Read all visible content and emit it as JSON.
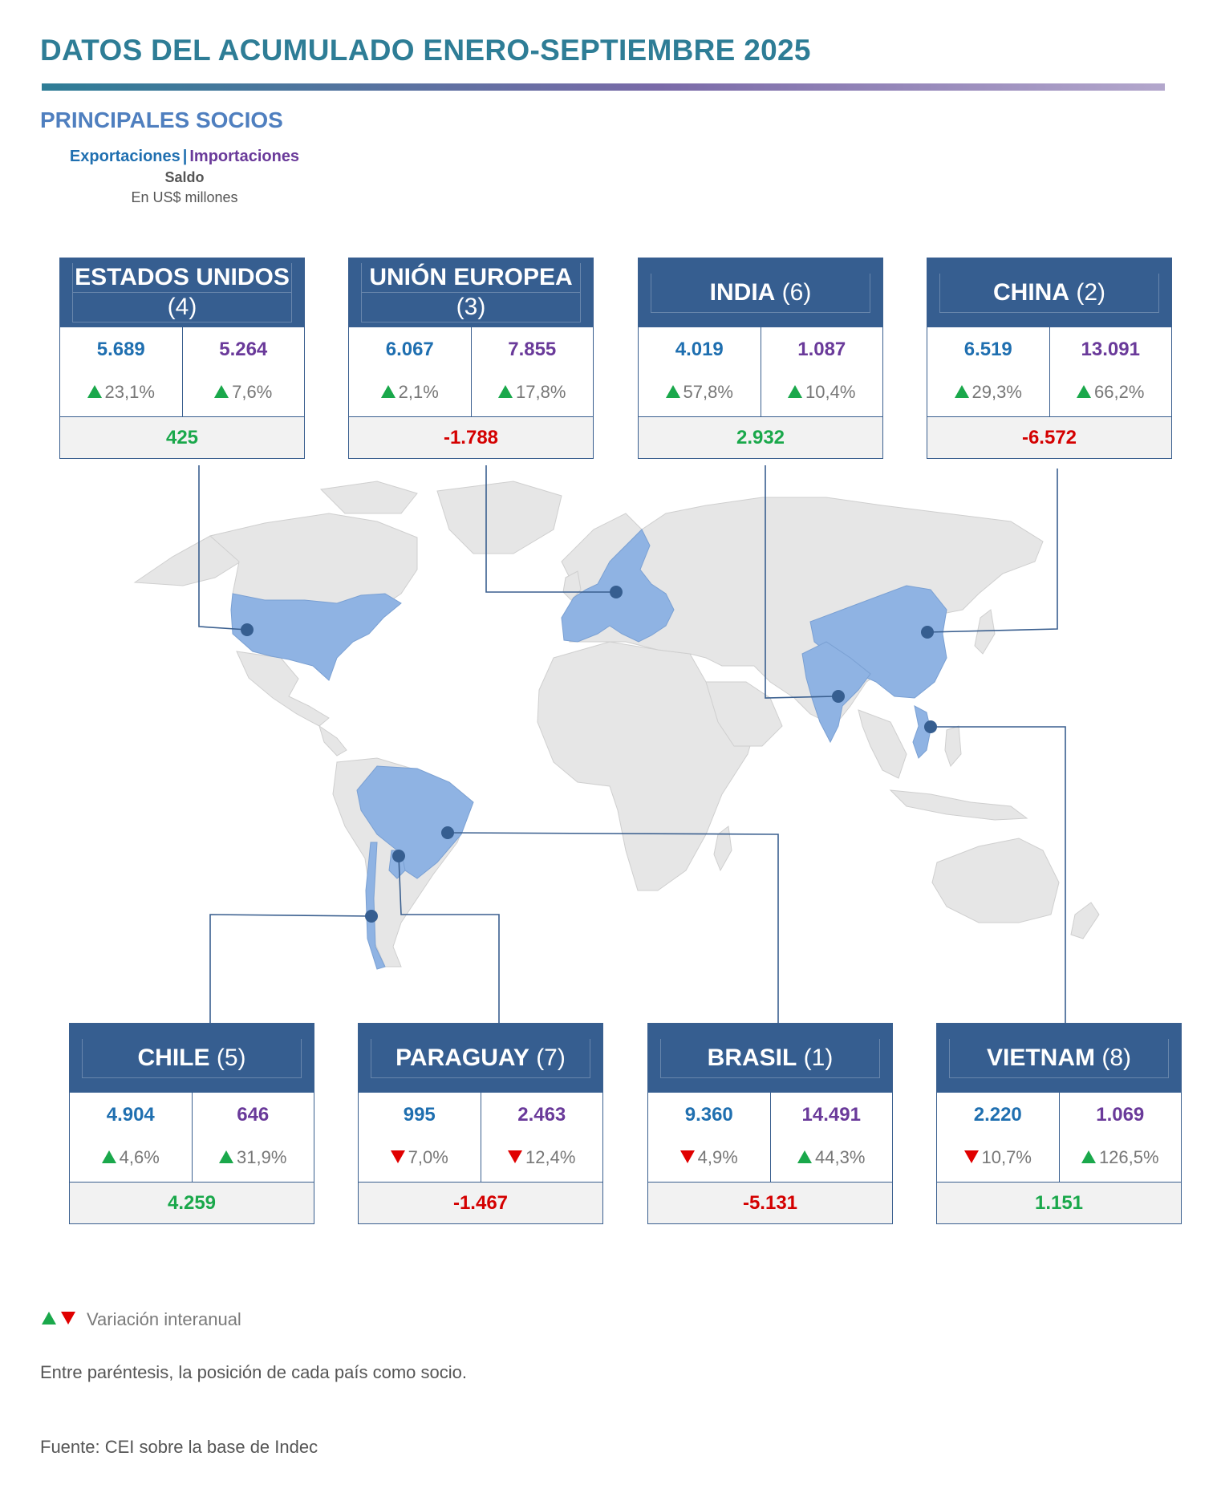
{
  "header": {
    "title": "DATOS DEL ACUMULADO ENERO-SEPTIEMBRE 2025",
    "subtitle": "PRINCIPALES SOCIOS",
    "legend_exports": "Exportaciones",
    "legend_separator": "|",
    "legend_imports": "Importaciones",
    "legend_balance": "Saldo",
    "legend_units": "En US$ millones"
  },
  "colors": {
    "header_bg": "#365e90",
    "exports": "#1f6fb0",
    "imports": "#6a3a9a",
    "positive": "#1aa84b",
    "negative": "#d40000",
    "partner_fill": "#8fb3e3",
    "land_fill": "#e6e6e6"
  },
  "partners": [
    {
      "name": "ESTADOS UNIDOS",
      "rank": "(4)",
      "exports": "5.689",
      "exports_var": "23,1%",
      "exports_dir": "up",
      "imports": "5.264",
      "imports_var": "7,6%",
      "imports_dir": "up",
      "balance": "425",
      "balance_sign": "pos"
    },
    {
      "name": "UNIÓN EUROPEA",
      "rank": "(3)",
      "exports": "6.067",
      "exports_var": "2,1%",
      "exports_dir": "up",
      "imports": "7.855",
      "imports_var": "17,8%",
      "imports_dir": "up",
      "balance": "-1.788",
      "balance_sign": "neg"
    },
    {
      "name": "INDIA",
      "rank": "(6)",
      "exports": "4.019",
      "exports_var": "57,8%",
      "exports_dir": "up",
      "imports": "1.087",
      "imports_var": "10,4%",
      "imports_dir": "up",
      "balance": "2.932",
      "balance_sign": "pos"
    },
    {
      "name": "CHINA",
      "rank": "(2)",
      "exports": "6.519",
      "exports_var": "29,3%",
      "exports_dir": "up",
      "imports": "13.091",
      "imports_var": "66,2%",
      "imports_dir": "up",
      "balance": "-6.572",
      "balance_sign": "neg"
    },
    {
      "name": "CHILE",
      "rank": "(5)",
      "exports": "4.904",
      "exports_var": "4,6%",
      "exports_dir": "up",
      "imports": "646",
      "imports_var": "31,9%",
      "imports_dir": "up",
      "balance": "4.259",
      "balance_sign": "pos"
    },
    {
      "name": "PARAGUAY",
      "rank": "(7)",
      "exports": "995",
      "exports_var": "7,0%",
      "exports_dir": "down",
      "imports": "2.463",
      "imports_var": "12,4%",
      "imports_dir": "down",
      "balance": "-1.467",
      "balance_sign": "neg"
    },
    {
      "name": "BRASIL",
      "rank": "(1)",
      "exports": "9.360",
      "exports_var": "4,9%",
      "exports_dir": "down",
      "imports": "14.491",
      "imports_var": "44,3%",
      "imports_dir": "up",
      "balance": "-5.131",
      "balance_sign": "neg"
    },
    {
      "name": "VIETNAM",
      "rank": "(8)",
      "exports": "2.220",
      "exports_var": "10,7%",
      "exports_dir": "down",
      "imports": "1.069",
      "imports_var": "126,5%",
      "imports_dir": "up",
      "balance": "1.151",
      "balance_sign": "pos"
    }
  ],
  "footer": {
    "variation_legend": "Variación interanual",
    "rank_note": "Entre paréntesis, la posición de cada país como socio.",
    "source": "Fuente: CEI sobre la base de Indec"
  }
}
